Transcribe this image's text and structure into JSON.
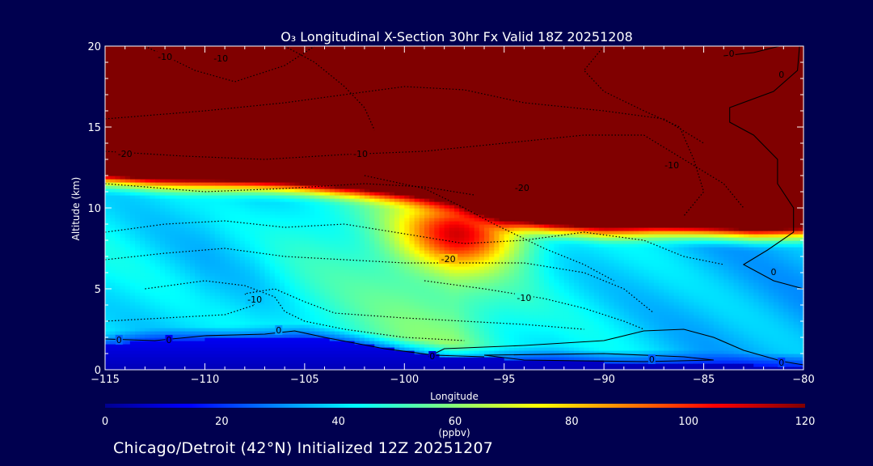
{
  "chart_data": {
    "type": "heatmap",
    "title": "O₃ Longitudinal X-Section 30hr  Fx Valid 18Z 20251208",
    "xlabel": "Longitude",
    "ylabel": "Altitude (km)",
    "xlim": [
      -115,
      -80
    ],
    "ylim": [
      0,
      20
    ],
    "x_ticks": [
      -115,
      -110,
      -105,
      -100,
      -95,
      -90,
      -85,
      -80
    ],
    "x_tick_labels": [
      "−115",
      "−110",
      "−105",
      "−100",
      "−95",
      "−90",
      "−85",
      "−80"
    ],
    "y_ticks": [
      0,
      5,
      10,
      15,
      20
    ],
    "y_tick_labels": [
      "0",
      "5",
      "10",
      "15",
      "20"
    ],
    "colorbar": {
      "min": 0,
      "max": 120,
      "ticks": [
        0,
        20,
        40,
        60,
        80,
        100,
        120
      ],
      "tick_labels": [
        "0",
        "20",
        "40",
        "60",
        "80",
        "100",
        "120"
      ],
      "unit_label": "(ppbv)"
    },
    "profile": {
      "longitudes": [
        -115,
        -112.5,
        -110,
        -107.5,
        -105,
        -102.5,
        -100,
        -97.5,
        -95,
        -92.5,
        -90,
        -87.5,
        -85,
        -82.5,
        -80
      ],
      "surface_km": [
        1.6,
        1.8,
        1.9,
        2.0,
        2.1,
        1.7,
        1.2,
        0.8,
        0.7,
        0.6,
        0.5,
        0.5,
        0.4,
        0.3,
        0.3
      ],
      "tropopause_km": [
        12.2,
        12.0,
        11.9,
        11.8,
        11.7,
        11.5,
        11.2,
        10.8,
        9.7,
        9.2,
        9.0,
        9.0,
        8.9,
        8.8,
        8.9
      ],
      "background_ppbv": [
        42,
        40,
        38,
        40,
        46,
        50,
        55,
        58,
        48,
        42,
        40,
        38,
        36,
        35,
        34
      ],
      "bump_lon": -97,
      "bump_alt_km": 8.5,
      "bump_ppbv": 50
    },
    "contour_labels": [
      {
        "text": "-10",
        "lon": -112.0,
        "alt": 19.3
      },
      {
        "text": "-10",
        "lon": -109.2,
        "alt": 19.2
      },
      {
        "text": "-20",
        "lon": -114.0,
        "alt": 13.3
      },
      {
        "text": "-10",
        "lon": -102.2,
        "alt": 13.3
      },
      {
        "text": "-10",
        "lon": -86.6,
        "alt": 12.6
      },
      {
        "text": "-20",
        "lon": -94.1,
        "alt": 11.2
      },
      {
        "text": "-20",
        "lon": -97.8,
        "alt": 6.8
      },
      {
        "text": "-10",
        "lon": -94.0,
        "alt": 4.4
      },
      {
        "text": "-10",
        "lon": -107.5,
        "alt": 4.3
      },
      {
        "text": "0",
        "lon": -114.3,
        "alt": 1.8
      },
      {
        "text": "0",
        "lon": -111.8,
        "alt": 1.8
      },
      {
        "text": "0",
        "lon": -106.3,
        "alt": 2.4
      },
      {
        "text": "0",
        "lon": -98.6,
        "alt": 0.8
      },
      {
        "text": "0",
        "lon": -87.6,
        "alt": 0.6
      },
      {
        "text": "0",
        "lon": -81.1,
        "alt": 0.4
      },
      {
        "text": "0",
        "lon": -81.1,
        "alt": 18.2
      },
      {
        "text": "0",
        "lon": -83.6,
        "alt": 19.5
      },
      {
        "text": "0",
        "lon": -81.5,
        "alt": 6.0
      }
    ]
  },
  "footer": "Chicago/Detroit (42°N) Initialized 12Z 20251207"
}
